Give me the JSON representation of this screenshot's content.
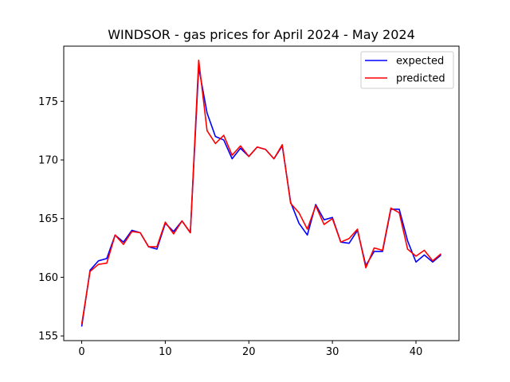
{
  "chart_data": {
    "type": "line",
    "title": "WINDSOR - gas prices for April 2024 - May 2024",
    "xlabel": "",
    "ylabel": "",
    "xlim": [
      -2.15,
      45.15
    ],
    "ylim": [
      154.6,
      179.7
    ],
    "xticks": [
      0,
      10,
      20,
      30,
      40
    ],
    "yticks": [
      155,
      160,
      165,
      170,
      175
    ],
    "grid": false,
    "legend_position": "top-right",
    "x": [
      0,
      1,
      2,
      3,
      4,
      5,
      6,
      7,
      8,
      9,
      10,
      11,
      12,
      13,
      14,
      15,
      16,
      17,
      18,
      19,
      20,
      21,
      22,
      23,
      24,
      25,
      26,
      27,
      28,
      29,
      30,
      31,
      32,
      33,
      34,
      35,
      36,
      37,
      38,
      39,
      40,
      41,
      42,
      43
    ],
    "series": [
      {
        "name": "expected",
        "color": "#0000ff",
        "values": [
          155.8,
          160.6,
          161.4,
          161.6,
          163.6,
          163.0,
          164.0,
          163.8,
          162.6,
          162.4,
          164.6,
          163.9,
          164.8,
          163.8,
          177.9,
          174.0,
          172.0,
          171.7,
          170.1,
          171.0,
          170.3,
          171.1,
          170.9,
          170.1,
          171.2,
          166.4,
          164.6,
          163.6,
          166.2,
          164.9,
          165.1,
          163.0,
          162.9,
          164.0,
          161.0,
          162.2,
          162.2,
          165.8,
          165.8,
          163.1,
          161.3,
          161.9,
          161.3,
          161.9
        ]
      },
      {
        "name": "predicted",
        "color": "#ff0000",
        "values": [
          156.0,
          160.5,
          161.1,
          161.2,
          163.6,
          162.8,
          163.9,
          163.8,
          162.6,
          162.6,
          164.7,
          163.7,
          164.8,
          163.8,
          178.5,
          172.5,
          171.4,
          172.1,
          170.4,
          171.2,
          170.3,
          171.1,
          170.9,
          170.1,
          171.3,
          166.3,
          165.5,
          164.1,
          166.1,
          164.5,
          165.0,
          163.0,
          163.3,
          164.1,
          160.8,
          162.5,
          162.3,
          165.9,
          165.5,
          162.4,
          161.8,
          162.3,
          161.4,
          162.0
        ]
      }
    ]
  }
}
